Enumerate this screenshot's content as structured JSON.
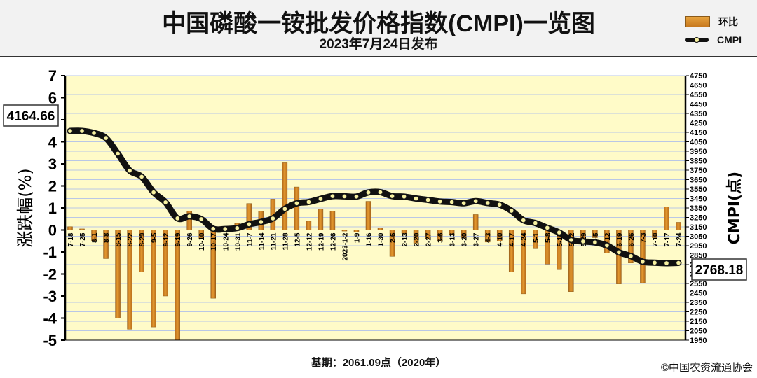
{
  "header": {
    "title": "中国磷酸一铵批发价格指数(CMPI)一览图",
    "subtitle": "2023年7月24日发布"
  },
  "legend": {
    "bar_label": "环比",
    "line_label": "CMPI"
  },
  "footer": {
    "base": "基期：2061.09点（2020年）",
    "copyright": "©中国农资流通协会"
  },
  "colors": {
    "plot_bg": "#fffbc8",
    "grid_line": "#b9c7e6",
    "bar": "#e3982f",
    "bar_dark": "#b56a1a",
    "line": "#111111",
    "marker_fill": "#f7f1a0"
  },
  "chart_data": {
    "type": "bar+line",
    "ylabel_left": "涨跌幅(%)",
    "ylabel_right": "CMPI(点)",
    "ylim_left": [
      -5,
      7
    ],
    "yticks_left": [
      -5,
      -4,
      -3,
      -2,
      -1,
      0,
      1,
      2,
      3,
      4,
      5,
      6,
      7
    ],
    "ylim_right": [
      1950,
      4750
    ],
    "yticks_right": [
      1950,
      2050,
      2150,
      2250,
      2350,
      2450,
      2550,
      2650,
      2750,
      2850,
      2950,
      3050,
      3150,
      3250,
      3350,
      3450,
      3550,
      3650,
      3750,
      3850,
      3950,
      4050,
      4150,
      4250,
      4350,
      4450,
      4550,
      4650,
      4750
    ],
    "grid": true,
    "legend_position": "top-right",
    "categories": [
      "7-18",
      "7-25",
      "8-1",
      "8-8",
      "8-15",
      "8-22",
      "8-29",
      "9-5",
      "9-12",
      "9-19",
      "9-26",
      "10-10",
      "10-17",
      "10-24",
      "10-31",
      "11-7",
      "11-14",
      "11-21",
      "11-28",
      "12-5",
      "12-12",
      "12-19",
      "12-26",
      "2023-1-2",
      "1-9",
      "1-16",
      "1-30",
      "2-6",
      "2-13",
      "2-20",
      "2-27",
      "3-6",
      "3-13",
      "3-20",
      "3-27",
      "4-3",
      "4-10",
      "4-17",
      "4-24",
      "5-1",
      "5-8",
      "5-15",
      "5-22",
      "5-29",
      "6-5",
      "6-12",
      "6-19",
      "6-26",
      "7-3",
      "7-10",
      "7-17",
      "7-24"
    ],
    "series": [
      {
        "name": "环比",
        "type": "bar",
        "values": [
          0.15,
          0.05,
          -0.5,
          -1.3,
          -4.0,
          -4.5,
          -1.9,
          -4.4,
          -3.0,
          -5.0,
          0.85,
          -0.4,
          -3.1,
          -0.1,
          0.3,
          1.2,
          0.85,
          1.4,
          3.05,
          1.95,
          0.4,
          0.95,
          0.85,
          -0.05,
          -0.1,
          1.3,
          0.1,
          -1.2,
          -0.15,
          -0.6,
          -0.4,
          -0.5,
          -0.2,
          -0.35,
          0.7,
          -0.55,
          -0.5,
          -1.9,
          -2.9,
          -0.85,
          -1.55,
          -1.8,
          -2.8,
          -0.5,
          -0.35,
          -1.05,
          -2.45,
          -1.5,
          -2.4,
          -0.35,
          1.05,
          0.35
        ]
      },
      {
        "name": "CMPI",
        "type": "line",
        "values": [
          4164.66,
          4165,
          4143,
          4090,
          3925,
          3745,
          3680,
          3515,
          3410,
          3240,
          3262,
          3232,
          3130,
          3127,
          3137,
          3177,
          3202,
          3239,
          3340,
          3399,
          3413,
          3446,
          3475,
          3473,
          3470,
          3514,
          3517,
          3475,
          3470,
          3450,
          3435,
          3418,
          3412,
          3400,
          3422,
          3402,
          3385,
          3320,
          3220,
          3190,
          3140,
          3090,
          3010,
          2995,
          2985,
          2953,
          2880,
          2840,
          2780,
          2770,
          2765,
          2768.18
        ]
      }
    ],
    "annotations": [
      {
        "text": "4164.66",
        "series": "CMPI",
        "point": "first"
      },
      {
        "text": "2768.18",
        "series": "CMPI",
        "point": "last"
      }
    ]
  }
}
